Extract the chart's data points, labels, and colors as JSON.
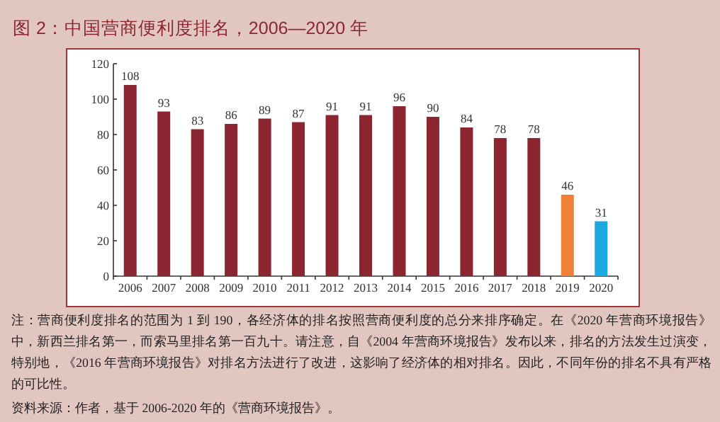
{
  "chart_data": {
    "type": "bar",
    "title": "图 2：中国营商便利度排名，2006—2020 年",
    "categories": [
      "2006",
      "2007",
      "2008",
      "2009",
      "2010",
      "2011",
      "2012",
      "2013",
      "2014",
      "2015",
      "2016",
      "2017",
      "2018",
      "2019",
      "2020"
    ],
    "values": [
      108,
      93,
      83,
      86,
      89,
      87,
      91,
      91,
      96,
      90,
      84,
      78,
      78,
      46,
      31
    ],
    "colors": [
      "#8b2630",
      "#8b2630",
      "#8b2630",
      "#8b2630",
      "#8b2630",
      "#8b2630",
      "#8b2630",
      "#8b2630",
      "#8b2630",
      "#8b2630",
      "#8b2630",
      "#8b2630",
      "#8b2630",
      "#f08038",
      "#1ba9df"
    ],
    "ylim": [
      0,
      120
    ],
    "yticks": [
      0,
      20,
      40,
      60,
      80,
      100,
      120
    ],
    "data_labels": true,
    "annotations": [
      "注：营商便利度排名的范围为 1 到 190，各经济体的排名按照营商便利度的总分来排序确定。在《2020 年营商环境报告》中，新西兰排名第一，而索马里排名第一百九十。请注意，自《2004 年营商环境报告》发布以来，排名的方法发生过演变，特别地，《2016 年营商环境报告》对排名方法进行了改进，这影响了经济体的相对排名。因此，不同年份的排名不具有严格的可比性。",
      "资料来源：作者，基于 2006-2020 年的《营商环境报告》。"
    ]
  }
}
